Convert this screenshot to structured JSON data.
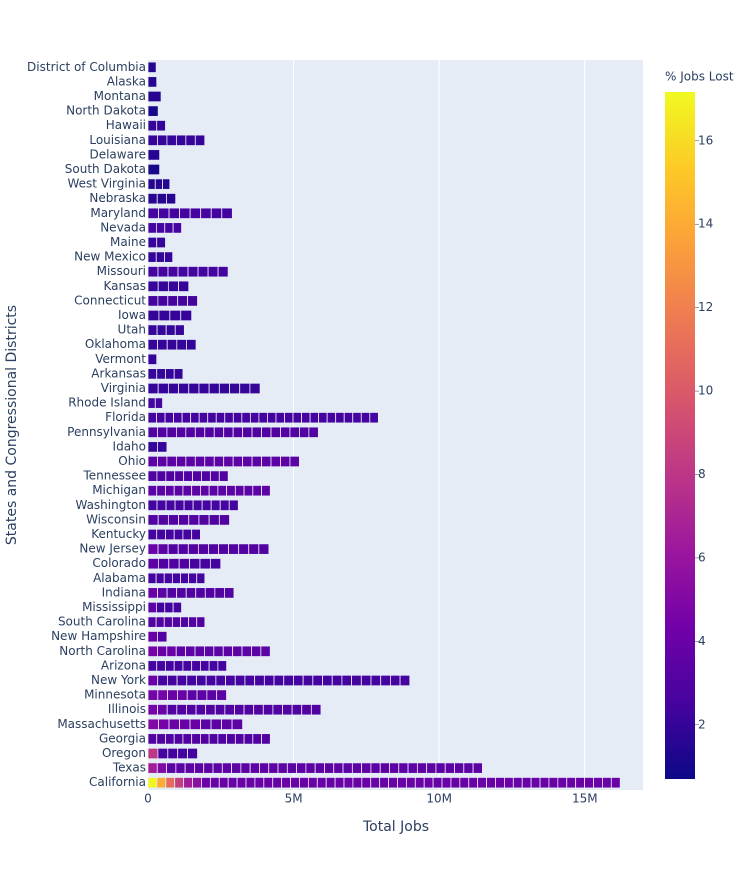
{
  "chart_data": {
    "type": "stacked-bar-h",
    "x_label": "Total Jobs",
    "y_label": "States and Congressional Districts",
    "colorbar_title": "% Jobs Lost",
    "categories": [
      "California",
      "Texas",
      "Oregon",
      "Georgia",
      "Massachusetts",
      "Illinois",
      "Minnesota",
      "New York",
      "Arizona",
      "North Carolina",
      "New Hampshire",
      "South Carolina",
      "Mississippi",
      "Indiana",
      "Alabama",
      "Colorado",
      "New Jersey",
      "Kentucky",
      "Wisconsin",
      "Washington",
      "Michigan",
      "Tennessee",
      "Ohio",
      "Idaho",
      "Pennsylvania",
      "Florida",
      "Rhode Island",
      "Virginia",
      "Arkansas",
      "Vermont",
      "Oklahoma",
      "Utah",
      "Iowa",
      "Connecticut",
      "Kansas",
      "Missouri",
      "New Mexico",
      "Maine",
      "Nevada",
      "Maryland",
      "Nebraska",
      "West Virginia",
      "South Dakota",
      "Delaware",
      "Louisiana",
      "Hawaii",
      "North Dakota",
      "Montana",
      "Alaska",
      "District of Columbia"
    ],
    "jobs": [
      [
        306000,
        306000,
        306000,
        306000,
        306000,
        306000,
        306000,
        306000,
        306000,
        306000,
        306000,
        306000,
        306000,
        306000,
        306000,
        306000,
        306000,
        306000,
        306000,
        306000,
        306000,
        306000,
        306000,
        306000,
        306000,
        306000,
        306000,
        306000,
        306000,
        306000,
        306000,
        306000,
        306000,
        306000,
        306000,
        306000,
        306000,
        306000,
        306000,
        306000,
        306000,
        306000,
        306000,
        306000,
        306000,
        306000,
        306000,
        306000,
        306000,
        306000,
        306000,
        306000,
        306000
      ],
      [
        319000,
        319000,
        319000,
        319000,
        319000,
        319000,
        319000,
        319000,
        319000,
        319000,
        319000,
        319000,
        319000,
        319000,
        319000,
        319000,
        319000,
        319000,
        319000,
        319000,
        319000,
        319000,
        319000,
        319000,
        319000,
        319000,
        319000,
        319000,
        319000,
        319000,
        319000,
        319000,
        319000,
        319000,
        319000,
        319000
      ],
      [
        340000,
        340000,
        340000,
        340000,
        340000
      ],
      [
        300000,
        300000,
        300000,
        300000,
        300000,
        300000,
        300000,
        300000,
        300000,
        300000,
        300000,
        300000,
        300000,
        300000
      ],
      [
        361000,
        361000,
        361000,
        361000,
        361000,
        361000,
        361000,
        361000,
        361000
      ],
      [
        330000,
        330000,
        330000,
        330000,
        330000,
        330000,
        330000,
        330000,
        330000,
        330000,
        330000,
        330000,
        330000,
        330000,
        330000,
        330000,
        330000,
        330000
      ],
      [
        337000,
        337000,
        337000,
        337000,
        337000,
        337000,
        337000,
        337000
      ],
      [
        333000,
        333000,
        333000,
        333000,
        333000,
        333000,
        333000,
        333000,
        333000,
        333000,
        333000,
        333000,
        333000,
        333000,
        333000,
        333000,
        333000,
        333000,
        333000,
        333000,
        333000,
        333000,
        333000,
        333000,
        333000,
        333000,
        333000
      ],
      [
        300000,
        300000,
        300000,
        300000,
        300000,
        300000,
        300000,
        300000,
        300000
      ],
      [
        323000,
        323000,
        323000,
        323000,
        323000,
        323000,
        323000,
        323000,
        323000,
        323000,
        323000,
        323000,
        323000
      ],
      [
        325000,
        325000
      ],
      [
        279000,
        279000,
        279000,
        279000,
        279000,
        279000,
        279000
      ],
      [
        288000,
        288000,
        288000,
        288000
      ],
      [
        328000,
        328000,
        328000,
        328000,
        328000,
        328000,
        328000,
        328000,
        328000
      ],
      [
        279000,
        279000,
        279000,
        279000,
        279000,
        279000,
        279000
      ],
      [
        357000,
        357000,
        357000,
        357000,
        357000,
        357000,
        357000
      ],
      [
        346000,
        346000,
        346000,
        346000,
        346000,
        346000,
        346000,
        346000,
        346000,
        346000,
        346000,
        346000
      ],
      [
        300000,
        300000,
        300000,
        300000,
        300000,
        300000
      ],
      [
        350000,
        350000,
        350000,
        350000,
        350000,
        350000,
        350000,
        350000
      ],
      [
        310000,
        310000,
        310000,
        310000,
        310000,
        310000,
        310000,
        310000,
        310000,
        310000
      ],
      [
        300000,
        300000,
        300000,
        300000,
        300000,
        300000,
        300000,
        300000,
        300000,
        300000,
        300000,
        300000,
        300000,
        300000
      ],
      [
        306000,
        306000,
        306000,
        306000,
        306000,
        306000,
        306000,
        306000,
        306000
      ],
      [
        325000,
        325000,
        325000,
        325000,
        325000,
        325000,
        325000,
        325000,
        325000,
        325000,
        325000,
        325000,
        325000,
        325000,
        325000,
        325000
      ],
      [
        325000,
        325000
      ],
      [
        325000,
        325000,
        325000,
        325000,
        325000,
        325000,
        325000,
        325000,
        325000,
        325000,
        325000,
        325000,
        325000,
        325000,
        325000,
        325000,
        325000,
        325000
      ],
      [
        293000,
        293000,
        293000,
        293000,
        293000,
        293000,
        293000,
        293000,
        293000,
        293000,
        293000,
        293000,
        293000,
        293000,
        293000,
        293000,
        293000,
        293000,
        293000,
        293000,
        293000,
        293000,
        293000,
        293000,
        293000,
        293000,
        293000
      ],
      [
        250000,
        250000
      ],
      [
        350000,
        350000,
        350000,
        350000,
        350000,
        350000,
        350000,
        350000,
        350000,
        350000,
        350000
      ],
      [
        300000,
        300000,
        300000,
        300000
      ],
      [
        300000
      ],
      [
        330000,
        330000,
        330000,
        330000,
        330000
      ],
      [
        312000,
        312000,
        312000,
        312000
      ],
      [
        375000,
        375000,
        375000,
        375000
      ],
      [
        340000,
        340000,
        340000,
        340000,
        340000
      ],
      [
        350000,
        350000,
        350000,
        350000
      ],
      [
        344000,
        344000,
        344000,
        344000,
        344000,
        344000,
        344000,
        344000
      ],
      [
        283000,
        283000,
        283000
      ],
      [
        300000,
        300000
      ],
      [
        288000,
        288000,
        288000,
        288000
      ],
      [
        362000,
        362000,
        362000,
        362000,
        362000,
        362000,
        362000,
        362000
      ],
      [
        317000,
        317000,
        317000
      ],
      [
        250000,
        250000,
        250000
      ],
      [
        400000
      ],
      [
        400000
      ],
      [
        325000,
        325000,
        325000,
        325000,
        325000,
        325000
      ],
      [
        300000,
        300000
      ],
      [
        350000
      ],
      [
        450000
      ],
      [
        300000
      ],
      [
        280000
      ]
    ],
    "pct_jobs_lost": [
      [
        17,
        14,
        11,
        8.5,
        6.5,
        5.5,
        4,
        4,
        4,
        4,
        4,
        4,
        4,
        4,
        4,
        4,
        4,
        4,
        4,
        4,
        4,
        4,
        4,
        4,
        4,
        4,
        4,
        4,
        4,
        4,
        4,
        4,
        4,
        4,
        4,
        4,
        4,
        4,
        4,
        4,
        4,
        4,
        4,
        4,
        4,
        4,
        4,
        4,
        4,
        4,
        4,
        4,
        4
      ],
      [
        6.5,
        5,
        3.5,
        3.5,
        3.5,
        3.5,
        3.5,
        3.5,
        3.5,
        3.5,
        3.5,
        3.5,
        3.5,
        3.5,
        3.5,
        3.5,
        3.5,
        3.5,
        3.5,
        3.5,
        3.5,
        3.5,
        3.5,
        3.5,
        3.5,
        3.5,
        3.5,
        3.5,
        3.5,
        3.5,
        3.5,
        3.5,
        3.5,
        3.5,
        3.5,
        3.5
      ],
      [
        8,
        2.5,
        2.5,
        2.5,
        2.5
      ],
      [
        3,
        3,
        3,
        3,
        3,
        3,
        3,
        3,
        3,
        3,
        3,
        3,
        3,
        3
      ],
      [
        5,
        4.5,
        4,
        4,
        4,
        3.5,
        3.5,
        3.5,
        3.5
      ],
      [
        4.5,
        4,
        3,
        3,
        3,
        3,
        3,
        3,
        3,
        3,
        3,
        3,
        3,
        3,
        3,
        3,
        3,
        3
      ],
      [
        4.5,
        4.5,
        4,
        4,
        3.5,
        3.5,
        3.5,
        3.5
      ],
      [
        4,
        2.5,
        2.5,
        2.5,
        2.5,
        2.5,
        2.5,
        2.5,
        2.5,
        2.5,
        2.5,
        2.5,
        2.5,
        2.5,
        2.5,
        2.5,
        2.5,
        2.5,
        2.5,
        2.5,
        2.5,
        2.5,
        2.5,
        2.5,
        2.5,
        2.5,
        2.5
      ],
      [
        2.5,
        2.5,
        2.5,
        2.5,
        2.5,
        2.5,
        2.5,
        2.5,
        2.5
      ],
      [
        4.5,
        4,
        4,
        3.5,
        3.5,
        3.5,
        3.5,
        3.5,
        3.5,
        3.5,
        3.5,
        3.5,
        3.5
      ],
      [
        4,
        3
      ],
      [
        3,
        3,
        3,
        3,
        3,
        3,
        3
      ],
      [
        3.5,
        2.5,
        2.5,
        2.5
      ],
      [
        4,
        3.5,
        3,
        3,
        3,
        3,
        3,
        3,
        3
      ],
      [
        2.5,
        2.5,
        2.5,
        2.5,
        2.5,
        2.5,
        2.5
      ],
      [
        3.5,
        3,
        3,
        3,
        2.5,
        2.5,
        2.5
      ],
      [
        4,
        3.5,
        3,
        3,
        3,
        3,
        3,
        3,
        3,
        3,
        3,
        3
      ],
      [
        2.5,
        2.5,
        2.5,
        2.5,
        2.5,
        2.5
      ],
      [
        3,
        3,
        3,
        3,
        3,
        3,
        3,
        3
      ],
      [
        2.5,
        2.5,
        2.5,
        2.5,
        2.5,
        2.5,
        2.5,
        2.5,
        2.5,
        2.5
      ],
      [
        3.5,
        3.5,
        3.5,
        3.5,
        3.5,
        3.5,
        3.5,
        3.5,
        3.5,
        3.5,
        3.5,
        3.5,
        3.5,
        3.5
      ],
      [
        3,
        3,
        3,
        3,
        3,
        3,
        3,
        3,
        3
      ],
      [
        3.5,
        3.5,
        3.5,
        3.5,
        3.5,
        3.5,
        3.5,
        3.5,
        3.5,
        3.5,
        3.5,
        3.5,
        3.5,
        3.5,
        3.5,
        3.5
      ],
      [
        2,
        2
      ],
      [
        3,
        3,
        3,
        3,
        3,
        3,
        3,
        3,
        3,
        3,
        3,
        3,
        3,
        3,
        3,
        3,
        3,
        3
      ],
      [
        2.5,
        2.5,
        2.5,
        2.5,
        2.5,
        2.5,
        2.5,
        2.5,
        2.5,
        2.5,
        2.5,
        2.5,
        2.5,
        2.5,
        2.5,
        2.5,
        2.5,
        2.5,
        2.5,
        2.5,
        2.5,
        2.5,
        2.5,
        2.5,
        2.5,
        2.5,
        2.5
      ],
      [
        2.5,
        2.5
      ],
      [
        2,
        2,
        2,
        2,
        2,
        2,
        2,
        2,
        2,
        2,
        2
      ],
      [
        2,
        2,
        2,
        2
      ],
      [
        2
      ],
      [
        2,
        2,
        2,
        2,
        2
      ],
      [
        2,
        2,
        2,
        2
      ],
      [
        2,
        2,
        2,
        2
      ],
      [
        2.5,
        2.5,
        2.5,
        2.5,
        2.5
      ],
      [
        2,
        2,
        2,
        2
      ],
      [
        2.5,
        2.5,
        2.5,
        2.5,
        2.5,
        2.5,
        2.5,
        2.5
      ],
      [
        2,
        2,
        2
      ],
      [
        2,
        2
      ],
      [
        2.5,
        2.5,
        2.5,
        2.5
      ],
      [
        2.5,
        2.5,
        2.5,
        2.5,
        2.5,
        2.5,
        2.5,
        2.5
      ],
      [
        1.5,
        1.5,
        1.5
      ],
      [
        1.5,
        1.5,
        1.5
      ],
      [
        1
      ],
      [
        1.5
      ],
      [
        2,
        2,
        2,
        2,
        2,
        2
      ],
      [
        2,
        2
      ],
      [
        1
      ],
      [
        1.5
      ],
      [
        1.5
      ],
      [
        1.5
      ]
    ],
    "xlim": [
      0,
      17000000
    ],
    "xticks": [
      0,
      {
        "value": 5000000,
        "label": "5M"
      },
      {
        "value": 10000000,
        "label": "10M"
      },
      {
        "value": 15000000,
        "label": "15M"
      }
    ],
    "clim": [
      0.7,
      17.17
    ],
    "cticks": [
      2,
      4,
      6,
      8,
      10,
      12,
      14,
      16
    ],
    "colorscale": [
      "#0d0887",
      "#46039f",
      "#7201a8",
      "#9c179e",
      "#bd3786",
      "#d8576b",
      "#ed7953",
      "#fb9f3a",
      "#fdca26",
      "#f0f921"
    ],
    "grid": true
  }
}
